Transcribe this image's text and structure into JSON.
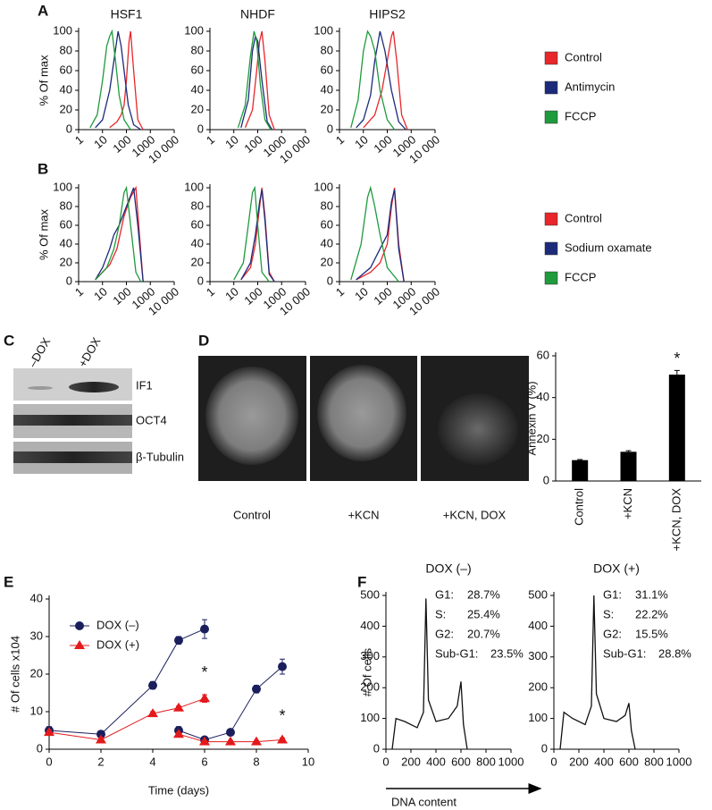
{
  "panels": [
    "A",
    "B",
    "C",
    "D",
    "E",
    "F"
  ],
  "blot": {
    "lanes": [
      "–DOX",
      "+DOX"
    ],
    "bands": [
      "IF1",
      "OCT4",
      "β-Tubulin"
    ]
  },
  "micrographs": [
    "Control",
    "+KCN",
    "+KCN, DOX"
  ],
  "chart_data": [
    {
      "type": "line",
      "title": "HSF1",
      "ylabel": "% Of max",
      "xscale": "log",
      "xlim": [
        1,
        10000
      ],
      "xticks": [
        1,
        10,
        100,
        1000,
        {
          "value": 10000,
          "label": "10 000"
        }
      ],
      "ylim": [
        0,
        100
      ],
      "yticks": [
        0,
        20,
        40,
        60,
        80,
        100
      ],
      "series": [
        {
          "name": "Control",
          "color": "#e8262b",
          "x": [
            20,
            40,
            60,
            80,
            100,
            130,
            150,
            200,
            300,
            500
          ],
          "values": [
            2,
            8,
            15,
            25,
            50,
            90,
            100,
            60,
            10,
            0
          ]
        },
        {
          "name": "Antimycin",
          "color": "#1c2a7a",
          "x": [
            5,
            10,
            20,
            30,
            45,
            60,
            80,
            120,
            200,
            400
          ],
          "values": [
            2,
            10,
            40,
            70,
            100,
            85,
            60,
            25,
            5,
            0
          ]
        },
        {
          "name": "FCCP",
          "color": "#1f9a3c",
          "x": [
            3,
            6,
            10,
            15,
            20,
            25,
            35,
            50,
            80,
            150
          ],
          "values": [
            2,
            15,
            50,
            85,
            95,
            100,
            70,
            35,
            10,
            0
          ]
        }
      ]
    },
    {
      "type": "line",
      "title": "NHDF",
      "xscale": "log",
      "xlim": [
        1,
        10000
      ],
      "xticks": [
        1,
        10,
        100,
        1000,
        {
          "value": 10000,
          "label": "10 000"
        }
      ],
      "ylim": [
        0,
        100
      ],
      "yticks": [
        0,
        20,
        40,
        60,
        80,
        100
      ],
      "series": [
        {
          "name": "Control",
          "color": "#e8262b",
          "x": [
            30,
            60,
            90,
            120,
            150,
            200,
            300,
            500
          ],
          "values": [
            2,
            20,
            60,
            90,
            100,
            70,
            15,
            0
          ]
        },
        {
          "name": "Antimycin",
          "color": "#1c2a7a",
          "x": [
            20,
            40,
            60,
            80,
            100,
            150,
            250,
            400
          ],
          "values": [
            2,
            30,
            80,
            95,
            90,
            50,
            8,
            0
          ]
        },
        {
          "name": "FCCP",
          "color": "#1f9a3c",
          "x": [
            15,
            30,
            50,
            70,
            90,
            130,
            200,
            350
          ],
          "values": [
            2,
            25,
            75,
            100,
            90,
            45,
            10,
            0
          ]
        }
      ]
    },
    {
      "type": "line",
      "title": "HIPS2",
      "xscale": "log",
      "xlim": [
        1,
        10000
      ],
      "xticks": [
        1,
        10,
        100,
        1000,
        {
          "value": 10000,
          "label": "10 000"
        }
      ],
      "ylim": [
        0,
        100
      ],
      "yticks": [
        0,
        20,
        40,
        60,
        80,
        100
      ],
      "series": [
        {
          "name": "Control",
          "color": "#e8262b",
          "x": [
            10,
            30,
            60,
            100,
            150,
            180,
            250,
            400,
            700
          ],
          "values": [
            2,
            15,
            40,
            70,
            95,
            100,
            70,
            15,
            0
          ]
        },
        {
          "name": "Antimycin",
          "color": "#1c2a7a",
          "x": [
            5,
            10,
            20,
            30,
            50,
            80,
            150,
            300,
            600
          ],
          "values": [
            2,
            10,
            35,
            70,
            100,
            80,
            40,
            8,
            0
          ]
        },
        {
          "name": "FCCP",
          "color": "#1f9a3c",
          "x": [
            3,
            6,
            10,
            15,
            20,
            30,
            50,
            100,
            200
          ],
          "values": [
            2,
            30,
            80,
            100,
            95,
            80,
            40,
            10,
            0
          ]
        }
      ]
    },
    {
      "type": "line",
      "ylabel": "% Of max",
      "xscale": "log",
      "xlim": [
        1,
        10000
      ],
      "xticks": [
        1,
        10,
        100,
        1000,
        {
          "value": 10000,
          "label": "10 000"
        }
      ],
      "ylim": [
        0,
        100
      ],
      "yticks": [
        0,
        20,
        40,
        60,
        80,
        100
      ],
      "series": [
        {
          "name": "Control",
          "color": "#e8262b",
          "x": [
            5,
            10,
            20,
            40,
            80,
            150,
            250,
            350,
            500
          ],
          "values": [
            2,
            10,
            18,
            35,
            70,
            90,
            100,
            50,
            0
          ]
        },
        {
          "name": "Sodium oxamate",
          "color": "#1c2a7a",
          "x": [
            5,
            10,
            20,
            30,
            50,
            100,
            200,
            300,
            500
          ],
          "values": [
            2,
            15,
            35,
            50,
            60,
            80,
            100,
            60,
            0
          ]
        },
        {
          "name": "FCCP",
          "color": "#1f9a3c",
          "x": [
            5,
            15,
            30,
            50,
            80,
            100,
            150,
            250,
            400
          ],
          "values": [
            2,
            15,
            35,
            60,
            95,
            100,
            60,
            10,
            0
          ]
        }
      ]
    },
    {
      "type": "line",
      "xscale": "log",
      "xlim": [
        1,
        10000
      ],
      "xticks": [
        1,
        10,
        100,
        1000,
        {
          "value": 10000,
          "label": "10 000"
        }
      ],
      "ylim": [
        0,
        100
      ],
      "yticks": [
        0,
        20,
        40,
        60,
        80,
        100
      ],
      "series": [
        {
          "name": "Control",
          "color": "#e8262b",
          "x": [
            20,
            50,
            80,
            120,
            150,
            200,
            300,
            500
          ],
          "values": [
            2,
            15,
            40,
            80,
            100,
            70,
            10,
            0
          ]
        },
        {
          "name": "Sodium oxamate",
          "color": "#1c2a7a",
          "x": [
            20,
            50,
            80,
            120,
            150,
            200,
            300,
            500
          ],
          "values": [
            2,
            20,
            50,
            85,
            98,
            65,
            8,
            0
          ]
        },
        {
          "name": "FCCP",
          "color": "#1f9a3c",
          "x": [
            10,
            25,
            40,
            60,
            75,
            100,
            150,
            300
          ],
          "values": [
            2,
            20,
            60,
            95,
            100,
            60,
            10,
            0
          ]
        }
      ]
    },
    {
      "type": "line",
      "xscale": "log",
      "xlim": [
        1,
        10000
      ],
      "xticks": [
        1,
        10,
        100,
        1000,
        {
          "value": 10000,
          "label": "10 000"
        }
      ],
      "ylim": [
        0,
        100
      ],
      "yticks": [
        0,
        20,
        40,
        60,
        80,
        100
      ],
      "series": [
        {
          "name": "Control",
          "color": "#e8262b",
          "x": [
            5,
            20,
            50,
            100,
            150,
            200,
            300,
            500
          ],
          "values": [
            2,
            10,
            20,
            40,
            80,
            100,
            40,
            0
          ]
        },
        {
          "name": "Sodium oxamate",
          "color": "#1c2a7a",
          "x": [
            5,
            20,
            50,
            100,
            150,
            200,
            300,
            500
          ],
          "values": [
            2,
            15,
            35,
            50,
            85,
            98,
            35,
            0
          ]
        },
        {
          "name": "FCCP",
          "color": "#1f9a3c",
          "x": [
            3,
            8,
            15,
            20,
            30,
            50,
            100,
            300
          ],
          "values": [
            2,
            40,
            90,
            100,
            80,
            50,
            15,
            0
          ]
        }
      ]
    },
    {
      "type": "bar",
      "ylabel": "Annexin V (%)",
      "categories": [
        "Control",
        "+KCN",
        "+KCN, DOX"
      ],
      "values": [
        10,
        14,
        51
      ],
      "errors": [
        0.3,
        0.5,
        2
      ],
      "color": "#000000",
      "ylim": [
        0,
        60
      ],
      "yticks": [
        0,
        20,
        40,
        60
      ],
      "annotations": [
        "*"
      ]
    },
    {
      "type": "line",
      "xlabel": "Time (days)",
      "ylabel": "# Of cells x104",
      "xlim": [
        0,
        10
      ],
      "xticks": [
        0,
        2,
        4,
        6,
        8,
        10
      ],
      "ylim": [
        0,
        40
      ],
      "yticks": [
        0,
        10,
        20,
        30,
        40
      ],
      "annotations": [
        "*",
        "*"
      ],
      "series": [
        {
          "name": "DOX (–)",
          "color": "#1a1f5c",
          "marker": "circle",
          "x": [
            0,
            2,
            4,
            5,
            6,
            null,
            5,
            6,
            7,
            8,
            9
          ],
          "values": [
            5,
            4,
            17,
            29,
            32,
            null,
            5,
            2.5,
            4.5,
            16,
            22
          ],
          "errors": [
            1,
            0.5,
            1,
            1,
            2.5,
            null,
            1,
            0.5,
            0.5,
            1,
            2
          ]
        },
        {
          "name": "DOX (+)",
          "color": "#e31a1c",
          "marker": "triangle",
          "x": [
            0,
            2,
            4,
            5,
            6,
            null,
            5,
            6,
            7,
            8,
            9
          ],
          "values": [
            4.5,
            2.5,
            9.5,
            11,
            13.5,
            null,
            4,
            2,
            2,
            2,
            2.5
          ],
          "errors": [
            0.5,
            0.5,
            0.5,
            0.5,
            1,
            null,
            0.5,
            0.3,
            0.3,
            0.3,
            0.5
          ]
        }
      ]
    },
    {
      "type": "line",
      "title": "DOX (–)",
      "ylabel": "# Of cells",
      "xlabel": "DNA content",
      "xlim": [
        0,
        1000
      ],
      "xticks": [
        0,
        200,
        400,
        600,
        800,
        1000
      ],
      "ylim": [
        0,
        500
      ],
      "yticks": [
        0,
        100,
        200,
        300,
        400,
        500
      ],
      "stats": [
        [
          "G1:",
          "28.7%"
        ],
        [
          "S:",
          "25.4%"
        ],
        [
          "G2:",
          "20.7%"
        ],
        [
          "Sub-G1:",
          "23.5%"
        ]
      ],
      "series": [
        {
          "name": "DOX (–)",
          "color": "#111111",
          "x": [
            50,
            80,
            150,
            250,
            300,
            320,
            340,
            400,
            500,
            570,
            600,
            620,
            650
          ],
          "values": [
            0,
            100,
            90,
            70,
            120,
            490,
            160,
            90,
            100,
            140,
            220,
            80,
            0
          ]
        }
      ]
    },
    {
      "type": "line",
      "title": "DOX (+)",
      "xlim": [
        0,
        1000
      ],
      "xticks": [
        0,
        200,
        400,
        600,
        800,
        1000
      ],
      "ylim": [
        0,
        500
      ],
      "yticks": [
        0,
        100,
        200,
        300,
        400,
        500
      ],
      "stats": [
        [
          "G1:",
          "31.1%"
        ],
        [
          "S:",
          "22.2%"
        ],
        [
          "G2:",
          "15.5%"
        ],
        [
          "Sub-G1:",
          "28.8%"
        ]
      ],
      "series": [
        {
          "name": "DOX (+)",
          "color": "#111111",
          "x": [
            50,
            80,
            150,
            250,
            300,
            320,
            340,
            400,
            500,
            570,
            600,
            620,
            650
          ],
          "values": [
            0,
            120,
            100,
            80,
            140,
            500,
            180,
            100,
            90,
            110,
            150,
            60,
            0
          ]
        }
      ]
    }
  ]
}
